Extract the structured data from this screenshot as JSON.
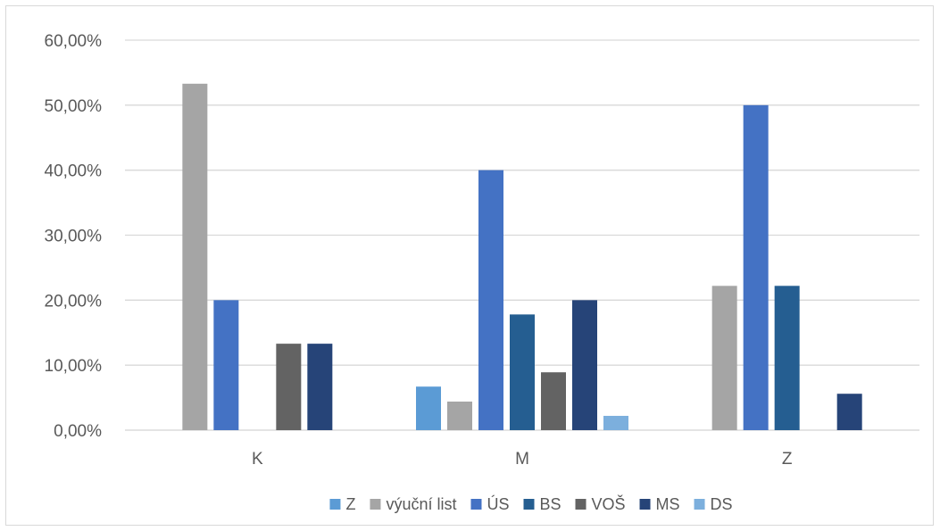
{
  "chart_data": {
    "type": "bar",
    "categories": [
      "K",
      "M",
      "Z"
    ],
    "y_tick_labels": [
      "0,00%",
      "10,00%",
      "20,00%",
      "30,00%",
      "40,00%",
      "50,00%",
      "60,00%"
    ],
    "ylim": [
      0,
      60
    ],
    "grid": true,
    "legend_position": "bottom",
    "series": [
      {
        "name": "Z",
        "color": "#5b9bd5",
        "values": [
          0,
          6.7,
          0
        ]
      },
      {
        "name": "výuční list",
        "color": "#a5a5a5",
        "values": [
          53.3,
          4.4,
          22.2
        ]
      },
      {
        "name": "ÚS",
        "color": "#4472c4",
        "values": [
          20.0,
          40.0,
          50.0
        ]
      },
      {
        "name": "BS",
        "color": "#255e91",
        "values": [
          0,
          17.8,
          22.2
        ]
      },
      {
        "name": "VOŠ",
        "color": "#636363",
        "values": [
          13.3,
          8.9,
          0
        ]
      },
      {
        "name": "MS",
        "color": "#264478",
        "values": [
          13.3,
          20.0,
          5.6
        ]
      },
      {
        "name": "DS",
        "color": "#7cafdd",
        "values": [
          0,
          2.2,
          0
        ]
      }
    ]
  }
}
